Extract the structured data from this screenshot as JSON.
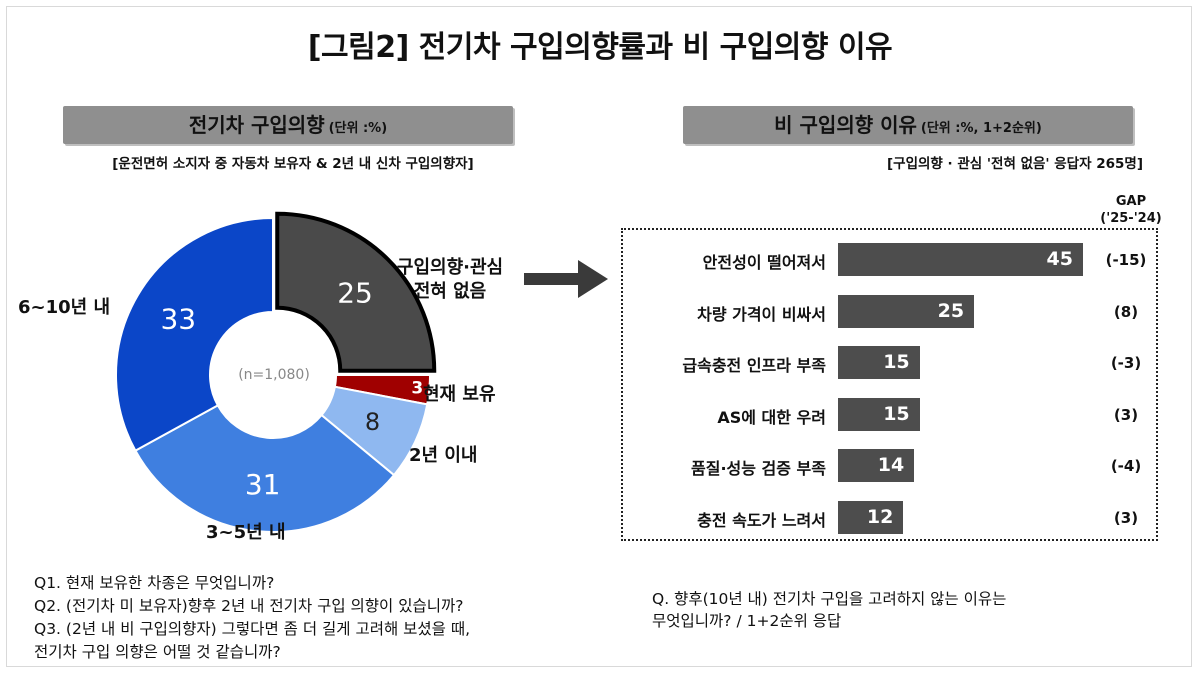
{
  "title": "[그림2] 전기차 구입의향률과 비 구입의향 이유",
  "left": {
    "header": "전기차 구입의향",
    "unit": "(단위 :%)",
    "subtitle": "[운전면허 소지자 중 자동차 보유자 & 2년 내 신차 구입의향자]",
    "center_note": "(n=1,080)",
    "questions": [
      "Q1. 현재 보유한 차종은 무엇입니까?",
      "Q2. (전기차 미 보유자)향후 2년 내 전기차 구입 의향이 있습니까?",
      "Q3. (2년 내 비 구입의향자) 그렇다면 좀 더 길게 고려해 보셨을 때,",
      "전기차 구입 의향은 어떨 것 같습니까?"
    ]
  },
  "right": {
    "header": "비 구입의향 이유",
    "unit": "(단위 :%, 1+2순위)",
    "subtitle": "[구입의향 · 관심 '전혀 없음' 응답자 265명]",
    "gap_header_1": "GAP",
    "gap_header_2": "('25-'24)",
    "question_1": "Q. 향후(10년 내) 전기차 구입을 고려하지 않는 이유는",
    "question_2": "무엇입니까? / 1+2순위 응답"
  },
  "chart_data": [
    {
      "type": "pie",
      "subtype": "donut",
      "categories": [
        "구입의향·관심 전혀 없음",
        "현재 보유",
        "2년 이내",
        "3~5년 내",
        "6~10년 내"
      ],
      "label_lines": [
        [
          "구입의향·관심",
          "전혀 없음"
        ],
        [
          "현재 보유"
        ],
        [
          "2년 이내"
        ],
        [
          "3~5년 내"
        ],
        [
          "6~10년 내"
        ]
      ],
      "values": [
        25,
        3,
        8,
        31,
        33
      ],
      "colors": [
        "#4a4a4a",
        "#a00000",
        "#8fb8f0",
        "#3f7fe0",
        "#0b46c8"
      ],
      "highlight": "구입의향·관심 전혀 없음"
    },
    {
      "type": "bar",
      "orientation": "horizontal",
      "categories": [
        "안전성이 떨어져서",
        "차량 가격이 비싸서",
        "급속충전 인프라 부족",
        "AS에 대한 우려",
        "품질·성능 검증 부족",
        "충전 속도가 느려서"
      ],
      "values": [
        45,
        25,
        15,
        15,
        14,
        12
      ],
      "gap": [
        "(-15)",
        "(8)",
        "(-3)",
        "(3)",
        "(-4)",
        "(3)"
      ],
      "color": "#4d4d4d"
    }
  ]
}
